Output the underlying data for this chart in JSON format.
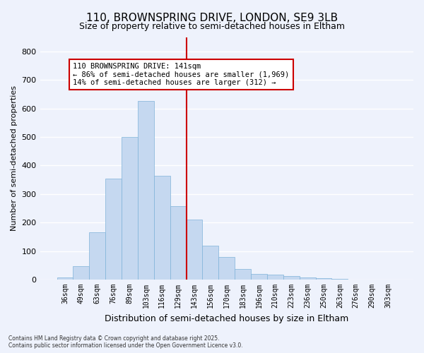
{
  "title": "110, BROWNSPRING DRIVE, LONDON, SE9 3LB",
  "subtitle": "Size of property relative to semi-detached houses in Eltham",
  "xlabel": "Distribution of semi-detached houses by size in Eltham",
  "ylabel": "Number of semi-detached properties",
  "categories": [
    "36sqm",
    "49sqm",
    "63sqm",
    "76sqm",
    "89sqm",
    "103sqm",
    "116sqm",
    "129sqm",
    "143sqm",
    "156sqm",
    "170sqm",
    "183sqm",
    "196sqm",
    "210sqm",
    "223sqm",
    "236sqm",
    "250sqm",
    "263sqm",
    "276sqm",
    "290sqm",
    "303sqm"
  ],
  "values": [
    8,
    47,
    165,
    353,
    500,
    625,
    363,
    258,
    210,
    120,
    80,
    37,
    20,
    18,
    12,
    8,
    4,
    2,
    0,
    1,
    0
  ],
  "bar_color": "#c5d8f0",
  "bar_edge_color": "#7fb3d9",
  "annotation_title": "110 BROWNSPRING DRIVE: 141sqm",
  "annotation_line1": "← 86% of semi-detached houses are smaller (1,969)",
  "annotation_line2": "14% of semi-detached houses are larger (312) →",
  "vline_color": "#cc0000",
  "annotation_box_color": "#ffffff",
  "annotation_box_edge": "#cc0000",
  "footer1": "Contains HM Land Registry data © Crown copyright and database right 2025.",
  "footer2": "Contains public sector information licensed under the Open Government Licence v3.0.",
  "bg_color": "#eef2fc",
  "ylim": [
    0,
    850
  ],
  "yticks": [
    0,
    100,
    200,
    300,
    400,
    500,
    600,
    700,
    800
  ],
  "title_fontsize": 11,
  "subtitle_fontsize": 9,
  "vline_x_index": 8
}
